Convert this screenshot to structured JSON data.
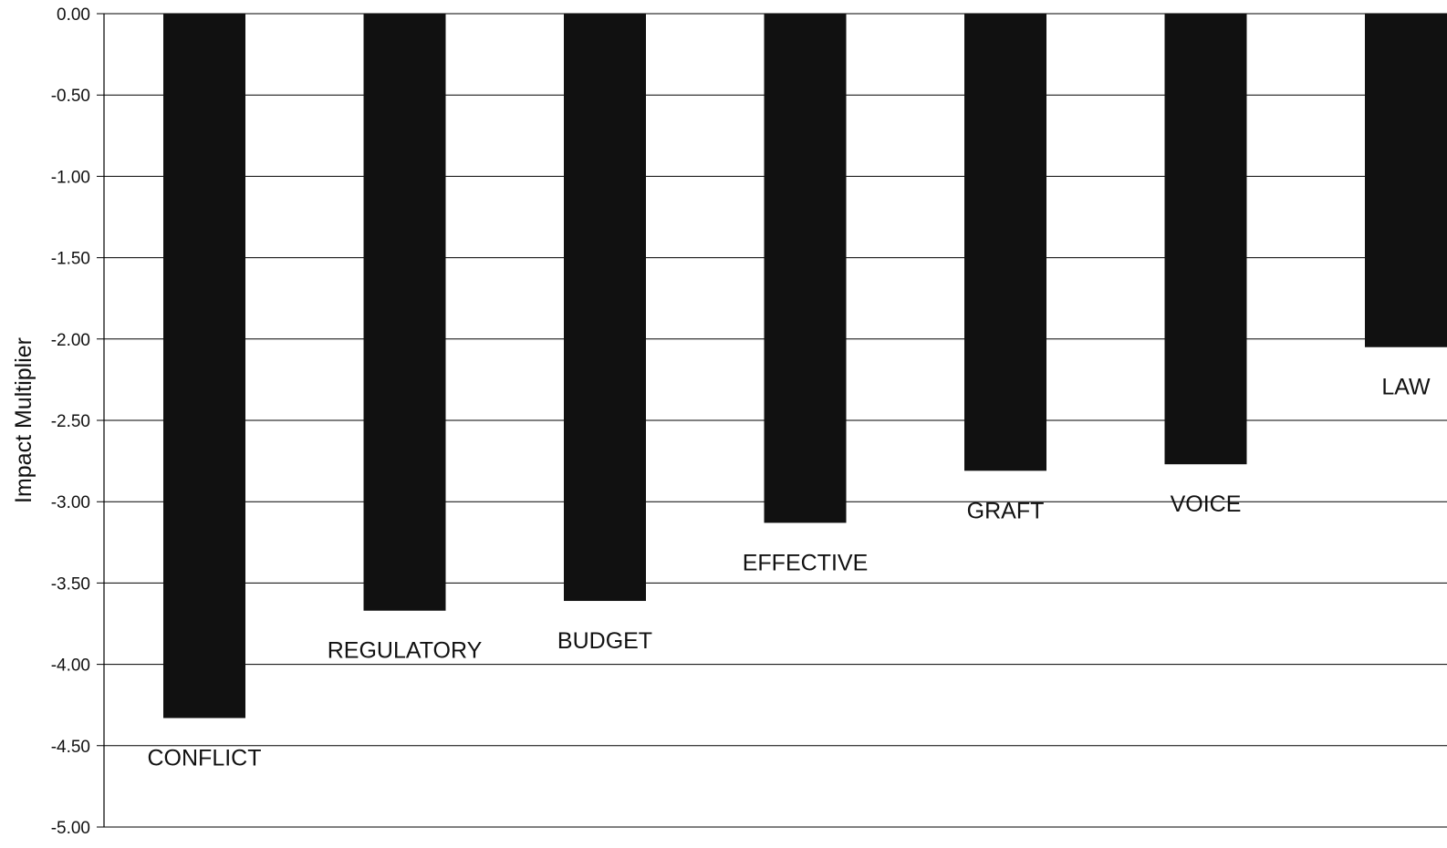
{
  "chart_data": {
    "type": "bar",
    "title": "",
    "xlabel": "",
    "ylabel": "Impact Multiplier",
    "ylim": [
      -5.0,
      0.0
    ],
    "yticks": [
      "0.00",
      "-0.50",
      "-1.00",
      "-1.50",
      "-2.00",
      "-2.50",
      "-3.00",
      "-3.50",
      "-4.00",
      "-4.50",
      "-5.00"
    ],
    "categories": [
      "CONFLICT",
      "REGULATORY",
      "BUDGET",
      "EFFECTIVE",
      "GRAFT",
      "VOICE",
      "LAW"
    ],
    "values": [
      -4.33,
      -3.67,
      -3.61,
      -3.13,
      -2.81,
      -2.77,
      -2.05
    ],
    "grid": true,
    "legend": "none",
    "colors": {
      "bar": "#111111",
      "grid": "#000000",
      "background": "#ffffff"
    }
  }
}
